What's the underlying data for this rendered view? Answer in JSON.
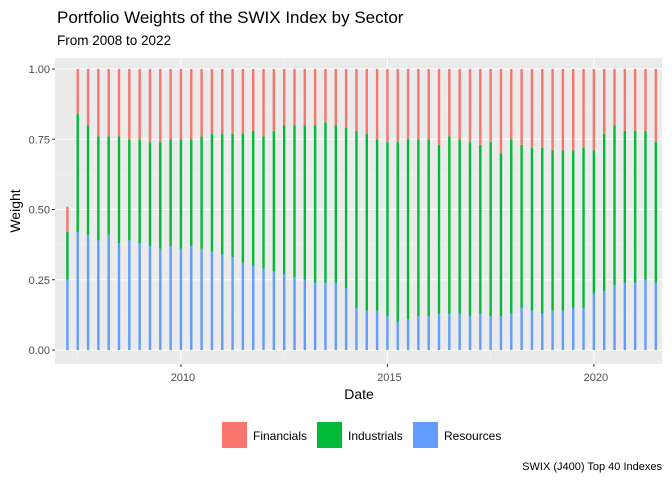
{
  "chart_data": {
    "type": "bar",
    "stacked": true,
    "title": "Portfolio Weights of the SWIX Index by Sector",
    "subtitle": "From 2008 to 2022",
    "xlabel": "Date",
    "ylabel": "Weight",
    "caption": "SWIX (J400) Top 40 Indexes",
    "ylim": [
      0,
      1.0
    ],
    "yticks": [
      0.0,
      0.25,
      0.5,
      0.75,
      1.0
    ],
    "ytick_labels": [
      "0.00",
      "0.25",
      "0.50",
      "0.75",
      "1.00"
    ],
    "xticks": [
      2010,
      2015,
      2020
    ],
    "xtick_labels": [
      "2010",
      "2015",
      "2020"
    ],
    "xlim": [
      2006.95,
      2021.65
    ],
    "grid": true,
    "legend_position": "bottom",
    "colors": {
      "Financials": "#F8766D",
      "Industrials": "#00BA38",
      "Resources": "#619CFF"
    },
    "legend": [
      "Financials",
      "Industrials",
      "Resources"
    ],
    "x": [
      2007.25,
      2007.5,
      2007.75,
      2008.0,
      2008.25,
      2008.5,
      2008.75,
      2009.0,
      2009.25,
      2009.5,
      2009.75,
      2010.0,
      2010.25,
      2010.5,
      2010.75,
      2011.0,
      2011.25,
      2011.5,
      2011.75,
      2012.0,
      2012.25,
      2012.5,
      2012.75,
      2013.0,
      2013.25,
      2013.5,
      2013.75,
      2014.0,
      2014.25,
      2014.5,
      2014.75,
      2015.0,
      2015.25,
      2015.5,
      2015.75,
      2016.0,
      2016.25,
      2016.5,
      2016.75,
      2017.0,
      2017.25,
      2017.5,
      2017.75,
      2018.0,
      2018.25,
      2018.5,
      2018.75,
      2019.0,
      2019.25,
      2019.5,
      2019.75,
      2020.0,
      2020.25,
      2020.5,
      2020.75,
      2021.0,
      2021.25,
      2021.5
    ],
    "series": [
      {
        "name": "Resources",
        "values": [
          0.25,
          0.42,
          0.41,
          0.39,
          0.41,
          0.38,
          0.39,
          0.38,
          0.37,
          0.36,
          0.37,
          0.36,
          0.37,
          0.36,
          0.35,
          0.34,
          0.33,
          0.31,
          0.3,
          0.29,
          0.28,
          0.27,
          0.26,
          0.25,
          0.24,
          0.24,
          0.24,
          0.22,
          0.15,
          0.14,
          0.14,
          0.12,
          0.1,
          0.11,
          0.12,
          0.12,
          0.13,
          0.13,
          0.13,
          0.12,
          0.13,
          0.12,
          0.12,
          0.13,
          0.15,
          0.14,
          0.13,
          0.14,
          0.14,
          0.15,
          0.15,
          0.2,
          0.21,
          0.23,
          0.24,
          0.24,
          0.25,
          0.24
        ]
      },
      {
        "name": "Industrials",
        "values": [
          0.17,
          0.42,
          0.39,
          0.37,
          0.35,
          0.38,
          0.36,
          0.37,
          0.37,
          0.38,
          0.38,
          0.39,
          0.38,
          0.4,
          0.42,
          0.43,
          0.44,
          0.46,
          0.48,
          0.47,
          0.5,
          0.53,
          0.54,
          0.55,
          0.56,
          0.57,
          0.56,
          0.57,
          0.63,
          0.63,
          0.61,
          0.62,
          0.64,
          0.64,
          0.63,
          0.63,
          0.6,
          0.63,
          0.62,
          0.62,
          0.6,
          0.62,
          0.58,
          0.62,
          0.58,
          0.58,
          0.59,
          0.57,
          0.57,
          0.56,
          0.57,
          0.51,
          0.56,
          0.57,
          0.54,
          0.54,
          0.53,
          0.5
        ]
      },
      {
        "name": "Financials",
        "values": [
          0.09,
          0.16,
          0.2,
          0.24,
          0.24,
          0.24,
          0.25,
          0.25,
          0.26,
          0.26,
          0.25,
          0.25,
          0.25,
          0.24,
          0.23,
          0.23,
          0.23,
          0.23,
          0.22,
          0.24,
          0.22,
          0.2,
          0.2,
          0.2,
          0.2,
          0.19,
          0.2,
          0.21,
          0.22,
          0.23,
          0.25,
          0.26,
          0.26,
          0.25,
          0.25,
          0.25,
          0.27,
          0.24,
          0.25,
          0.26,
          0.27,
          0.26,
          0.3,
          0.25,
          0.27,
          0.28,
          0.28,
          0.29,
          0.29,
          0.29,
          0.28,
          0.29,
          0.23,
          0.2,
          0.22,
          0.22,
          0.22,
          0.26
        ]
      }
    ]
  }
}
